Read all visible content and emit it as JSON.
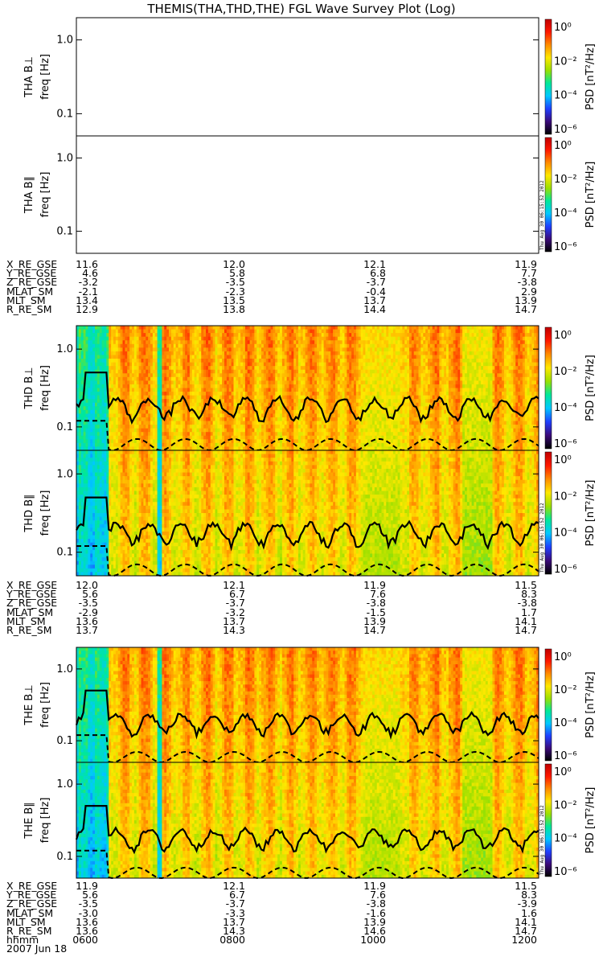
{
  "title": "THEMIS(THA,THD,THE) FGL Wave Survey Plot (Log)",
  "chart_data": {
    "type": "heatmap",
    "title": "THEMIS(THA,THD,THE) FGL Wave Survey Plot (Log)",
    "ylabel": "freq [Hz]",
    "y_scale": "log",
    "ylim": [
      0.05,
      2.0
    ],
    "y_ticks": [
      "1.0",
      "0.1"
    ],
    "colorbar": {
      "label": "PSD [nT²/Hz]",
      "scale": "log",
      "ticks": [
        "10⁰",
        "10⁻²",
        "10⁻⁴",
        "10⁻⁶"
      ],
      "colormap": [
        "#000000",
        "#3b0a7a",
        "#1f3fff",
        "#00c8ff",
        "#00e89a",
        "#9be000",
        "#ffe800",
        "#ff8c00",
        "#ff1800",
        "#c00000"
      ]
    },
    "panels": [
      {
        "probe": "THA",
        "component": "THA B⊥",
        "data": "empty"
      },
      {
        "probe": "THA",
        "component": "THA B∥",
        "data": "empty"
      },
      {
        "probe": "THD",
        "component": "THD B⊥",
        "data": "spectrogram"
      },
      {
        "probe": "THD",
        "component": "THD B∥",
        "data": "spectrogram"
      },
      {
        "probe": "THE",
        "component": "THE B⊥",
        "data": "spectrogram"
      },
      {
        "probe": "THE",
        "component": "THE B∥",
        "data": "spectrogram"
      }
    ],
    "time_axis": {
      "label": "hhmm",
      "ticks": [
        "0600",
        "0800",
        "1000",
        "1200"
      ],
      "date": "2007 Jun 18"
    }
  },
  "ephemeris_labels": [
    "X_RE_GSE",
    "Y_RE_GSE",
    "Z_RE_GSE",
    "MLAT_SM",
    "MLT_SM",
    "R_RE_SM"
  ],
  "ephemeris": {
    "THA": [
      [
        "11.6",
        "12.0",
        "12.1",
        "11.9"
      ],
      [
        "4.6",
        "5.8",
        "6.8",
        "7.7"
      ],
      [
        "-3.2",
        "-3.5",
        "-3.7",
        "-3.8"
      ],
      [
        "-2.1",
        "-2.3",
        "-0.4",
        "2.9"
      ],
      [
        "13.4",
        "13.5",
        "13.7",
        "13.9"
      ],
      [
        "12.9",
        "13.8",
        "14.4",
        "14.7"
      ]
    ],
    "THD": [
      [
        "12.0",
        "12.1",
        "11.9",
        "11.5"
      ],
      [
        "5.6",
        "6.7",
        "7.6",
        "8.3"
      ],
      [
        "-3.5",
        "-3.7",
        "-3.8",
        "-3.8"
      ],
      [
        "-2.9",
        "-3.2",
        "-1.5",
        "1.7"
      ],
      [
        "13.6",
        "13.7",
        "13.9",
        "14.1"
      ],
      [
        "13.7",
        "14.3",
        "14.7",
        "14.7"
      ]
    ],
    "THE": [
      [
        "11.9",
        "12.1",
        "11.9",
        "11.5"
      ],
      [
        "5.6",
        "6.7",
        "7.6",
        "8.3"
      ],
      [
        "-3.5",
        "-3.7",
        "-3.8",
        "-3.9"
      ],
      [
        "-3.0",
        "-3.3",
        "-1.6",
        "1.6"
      ],
      [
        "13.6",
        "13.7",
        "13.9",
        "14.1"
      ],
      [
        "13.6",
        "14.3",
        "14.6",
        "14.7"
      ]
    ]
  },
  "stamp": "Thu Aug 30 06:15:52 2012"
}
